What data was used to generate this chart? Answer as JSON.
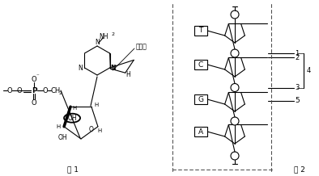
{
  "fig_width": 3.94,
  "fig_height": 2.18,
  "dpi": 100,
  "bg_color": "#ffffff",
  "line_color": "#000000",
  "fig1_label": "图 1",
  "fig2_label": "图 2",
  "bases": [
    "T",
    "C",
    "G",
    "A"
  ],
  "annotation": "腺嘌呤"
}
